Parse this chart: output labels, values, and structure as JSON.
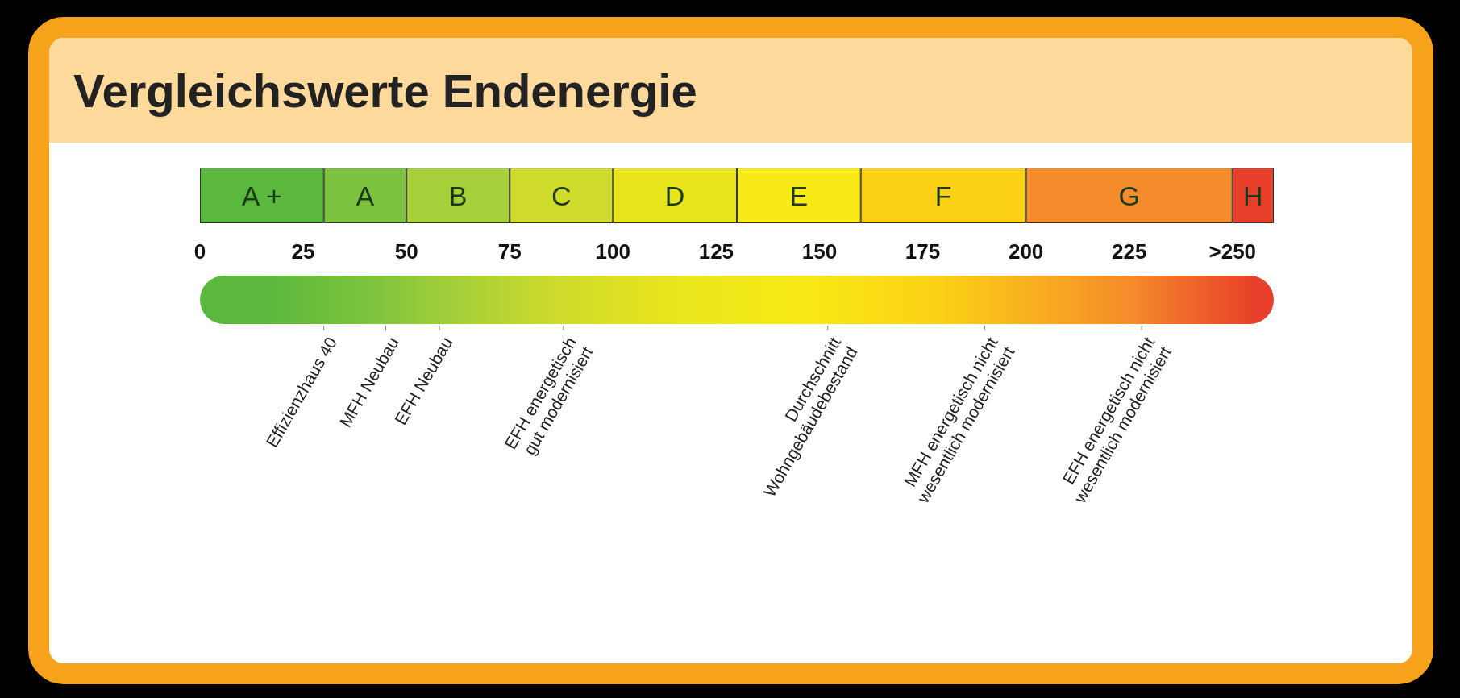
{
  "chart_data": {
    "type": "bar",
    "orientation": "horizontal",
    "stacked": true,
    "title": "Vergleichswerte Endenergie",
    "categories": [
      null
    ],
    "xlim": [
      0,
      260
    ],
    "xticks": [
      0,
      25,
      50,
      75,
      100,
      125,
      150,
      175,
      200,
      225,
      {
        "value": 250,
        "label": ">250"
      }
    ],
    "series": [
      {
        "name": "A +",
        "color": "#5ab83c",
        "values": [
          30
        ]
      },
      {
        "name": "A",
        "color": "#7cc23e",
        "values": [
          20
        ]
      },
      {
        "name": "B",
        "color": "#a6cf3a",
        "values": [
          25
        ]
      },
      {
        "name": "C",
        "color": "#cfdc2c",
        "values": [
          25
        ]
      },
      {
        "name": "D",
        "color": "#e9e51c",
        "values": [
          30
        ]
      },
      {
        "name": "E",
        "color": "#f7ea16",
        "values": [
          30
        ]
      },
      {
        "name": "F",
        "color": "#fbd015",
        "values": [
          40
        ]
      },
      {
        "name": "G",
        "color": "#f48c2c",
        "values": [
          50
        ]
      },
      {
        "name": "H",
        "color": "#e8402a",
        "values": [
          10
        ]
      }
    ],
    "ref_lines": [
      {
        "axis": "x",
        "value": 30,
        "label": "Effizienzhaus 40"
      },
      {
        "axis": "x",
        "value": 45,
        "label": "MFH Neubau"
      },
      {
        "axis": "x",
        "value": 58,
        "label": "EFH Neubau"
      },
      {
        "axis": "x",
        "value": 88,
        "label": "EFH energetisch\ngut modernisiert"
      },
      {
        "axis": "x",
        "value": 152,
        "label": "Durchschnitt\nWohngebäudebestand"
      },
      {
        "axis": "x",
        "value": 190,
        "label": "MFH energetisch nicht\nwesentlich modernisiert"
      },
      {
        "axis": "x",
        "value": 228,
        "label": "EFH energetisch nicht\nwesentlich modernisiert"
      }
    ]
  }
}
